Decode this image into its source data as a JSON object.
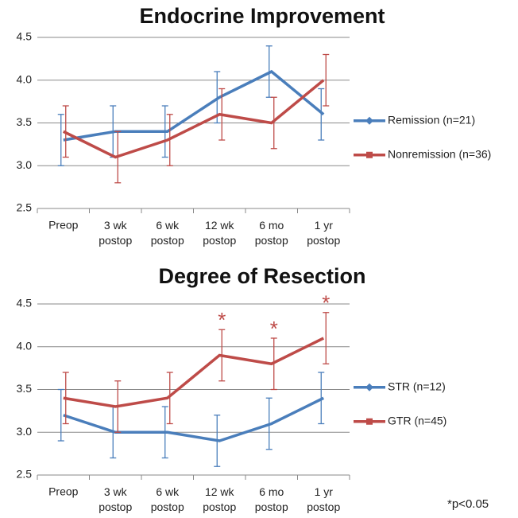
{
  "chart_data": [
    {
      "type": "line",
      "title": "Endocrine Improvement",
      "categories": [
        "Preop",
        "3 wk postop",
        "6 wk postop",
        "12 wk postop",
        "6 mo postop",
        "1 yr postop"
      ],
      "series": [
        {
          "name": "Remission (n=21)",
          "color": "#4a7ebb",
          "marker": "diamond",
          "values": [
            3.3,
            3.4,
            3.4,
            3.8,
            4.1,
            3.6
          ],
          "errors": [
            0.3,
            0.3,
            0.3,
            0.3,
            0.3,
            0.3
          ]
        },
        {
          "name": "Nonremission (n=36)",
          "color": "#be4b48",
          "marker": "square",
          "values": [
            3.4,
            3.1,
            3.3,
            3.6,
            3.5,
            4.0
          ],
          "errors": [
            0.3,
            0.3,
            0.3,
            0.3,
            0.3,
            0.3
          ]
        }
      ],
      "ylim": [
        2.5,
        4.5
      ],
      "yticks": [
        2.5,
        {
          "value": 3,
          "label": "3.0"
        },
        3.5,
        {
          "value": 4,
          "label": "4.0"
        },
        4.5
      ],
      "grid": true
    },
    {
      "type": "line",
      "title": "Degree of Resection",
      "categories": [
        "Preop",
        "3 wk postop",
        "6 wk postop",
        "12 wk postop",
        "6 mo postop",
        "1 yr postop"
      ],
      "series": [
        {
          "name": "STR (n=12)",
          "color": "#4a7ebb",
          "marker": "diamond",
          "values": [
            3.2,
            3.0,
            3.0,
            2.9,
            3.1,
            3.4
          ],
          "errors": [
            0.3,
            0.3,
            0.3,
            0.3,
            0.3,
            0.3
          ]
        },
        {
          "name": "GTR (n=45)",
          "color": "#be4b48",
          "marker": "square",
          "values": [
            3.4,
            3.3,
            3.4,
            3.9,
            3.8,
            4.1
          ],
          "errors": [
            0.3,
            0.3,
            0.3,
            0.3,
            0.3,
            0.3
          ]
        }
      ],
      "significance": [
        null,
        null,
        null,
        "*",
        "*",
        "*"
      ],
      "footnote": "*p<0.05",
      "ylim": [
        2.5,
        4.5
      ],
      "yticks": [
        2.5,
        {
          "value": 3,
          "label": "3.0"
        },
        3.5,
        {
          "value": 4,
          "label": "4.0"
        },
        4.5
      ],
      "grid": true
    }
  ]
}
